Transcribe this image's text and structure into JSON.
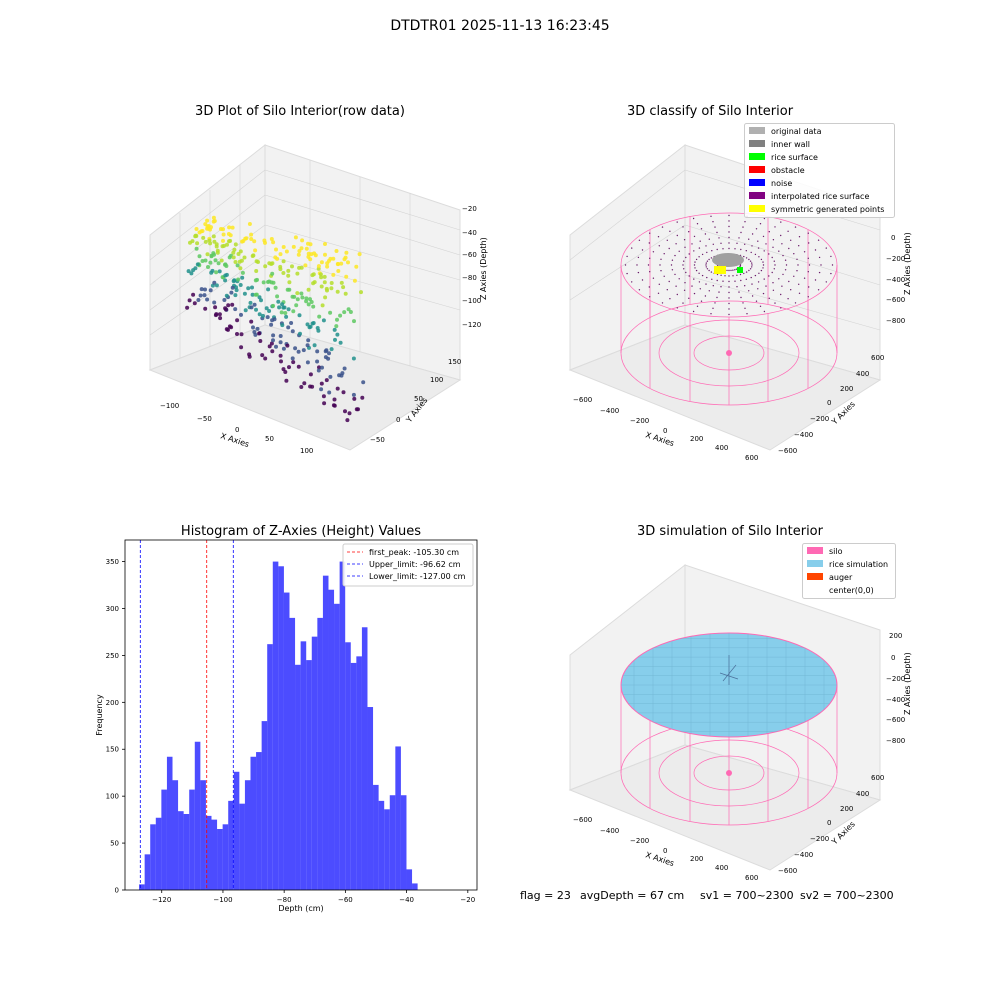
{
  "figure": {
    "suptitle": "DTDTR01 2025-11-13 16:23:45",
    "status": {
      "flag": "flag = 23",
      "avg_depth": "avgDepth = 67 cm",
      "sv1": "sv1 = 700~2300",
      "sv2": "sv2 = 700~2300"
    }
  },
  "panels": {
    "raw": {
      "title": "3D Plot of Silo Interior(row data)",
      "xlabel": "X Axies",
      "ylabel": "Y Axies",
      "zlabel": "Z Axies (Depth)",
      "xticks": [
        "−100",
        "−50",
        "0",
        "50",
        "100"
      ],
      "yticks": [
        "−50",
        "0",
        "50",
        "100",
        "150"
      ],
      "zticks": [
        "−20",
        "−40",
        "−60",
        "−80",
        "−100",
        "−120"
      ],
      "colormap": "viridis"
    },
    "classify": {
      "title": "3D classify of Silo Interior",
      "xlabel": "X Axies",
      "ylabel": "Y Axies",
      "zlabel": "Z Axies (Depth)",
      "xticks": [
        "−600",
        "−400",
        "−200",
        "0",
        "200",
        "400",
        "600"
      ],
      "yticks": [
        "600",
        "400",
        "200",
        "0",
        "−200",
        "−400",
        "−600"
      ],
      "zticks": [
        "0",
        "−200",
        "−400",
        "−600",
        "−800"
      ],
      "legend": [
        {
          "label": "original data",
          "color": "#b0b0b0"
        },
        {
          "label": "inner wall",
          "color": "#808080"
        },
        {
          "label": "rice surface",
          "color": "#00ff00"
        },
        {
          "label": "obstacle",
          "color": "#ff0000"
        },
        {
          "label": "noise",
          "color": "#0000ff"
        },
        {
          "label": "interpolated rice surface",
          "color": "#800080"
        },
        {
          "label": "symmetric generated points",
          "color": "#ffff00"
        }
      ]
    },
    "simulation": {
      "title": "3D simulation of Silo Interior",
      "xlabel": "X Axies",
      "ylabel": "Y Axies",
      "zlabel": "Z Axies (Depth)",
      "xticks": [
        "−600",
        "−400",
        "−200",
        "0",
        "200",
        "400",
        "600"
      ],
      "yticks": [
        "600",
        "400",
        "200",
        "0",
        "−200",
        "−400",
        "−600"
      ],
      "zticks": [
        "200",
        "0",
        "−200",
        "−400",
        "−600",
        "−800"
      ],
      "legend": [
        {
          "label": "silo",
          "color": "#ff69b4"
        },
        {
          "label": "rice simulation",
          "color": "#87ceeb"
        },
        {
          "label": "auger",
          "color": "#ff4500"
        },
        {
          "label": "center(0,0)",
          "color": "none"
        }
      ]
    }
  },
  "chart_data": {
    "type": "bar",
    "title": "Histogram of Z-Axies (Height) Values",
    "xlabel": "Depth (cm)",
    "ylabel": "Frequency",
    "xlim": [
      -132,
      -17
    ],
    "ylim": [
      0,
      373
    ],
    "xticks": [
      -120,
      -100,
      -80,
      -60,
      -40,
      -20
    ],
    "yticks": [
      0,
      50,
      100,
      150,
      200,
      250,
      300,
      350
    ],
    "bar_color": "#0000ff",
    "bin_start": -127.4,
    "bin_width": 1.82,
    "values": [
      6,
      38,
      70,
      77,
      107,
      142,
      117,
      84,
      81,
      107,
      158,
      117,
      79,
      75,
      65,
      70,
      95,
      126,
      92,
      117,
      142,
      147,
      180,
      262,
      350,
      345,
      317,
      290,
      240,
      265,
      245,
      270,
      290,
      335,
      320,
      305,
      350,
      264,
      242,
      249,
      280,
      195,
      112,
      95,
      86,
      101,
      153,
      101,
      22,
      7
    ],
    "vlines": [
      {
        "label": "first_peak: -105.30 cm",
        "x": -105.3,
        "color": "#ff0000"
      },
      {
        "label": "Upper_limit: -96.62 cm",
        "x": -96.62,
        "color": "#0000ff"
      },
      {
        "label": "Lower_limit: -127.00 cm",
        "x": -127.0,
        "color": "#0000ff"
      }
    ],
    "legend_position": "upper right"
  }
}
